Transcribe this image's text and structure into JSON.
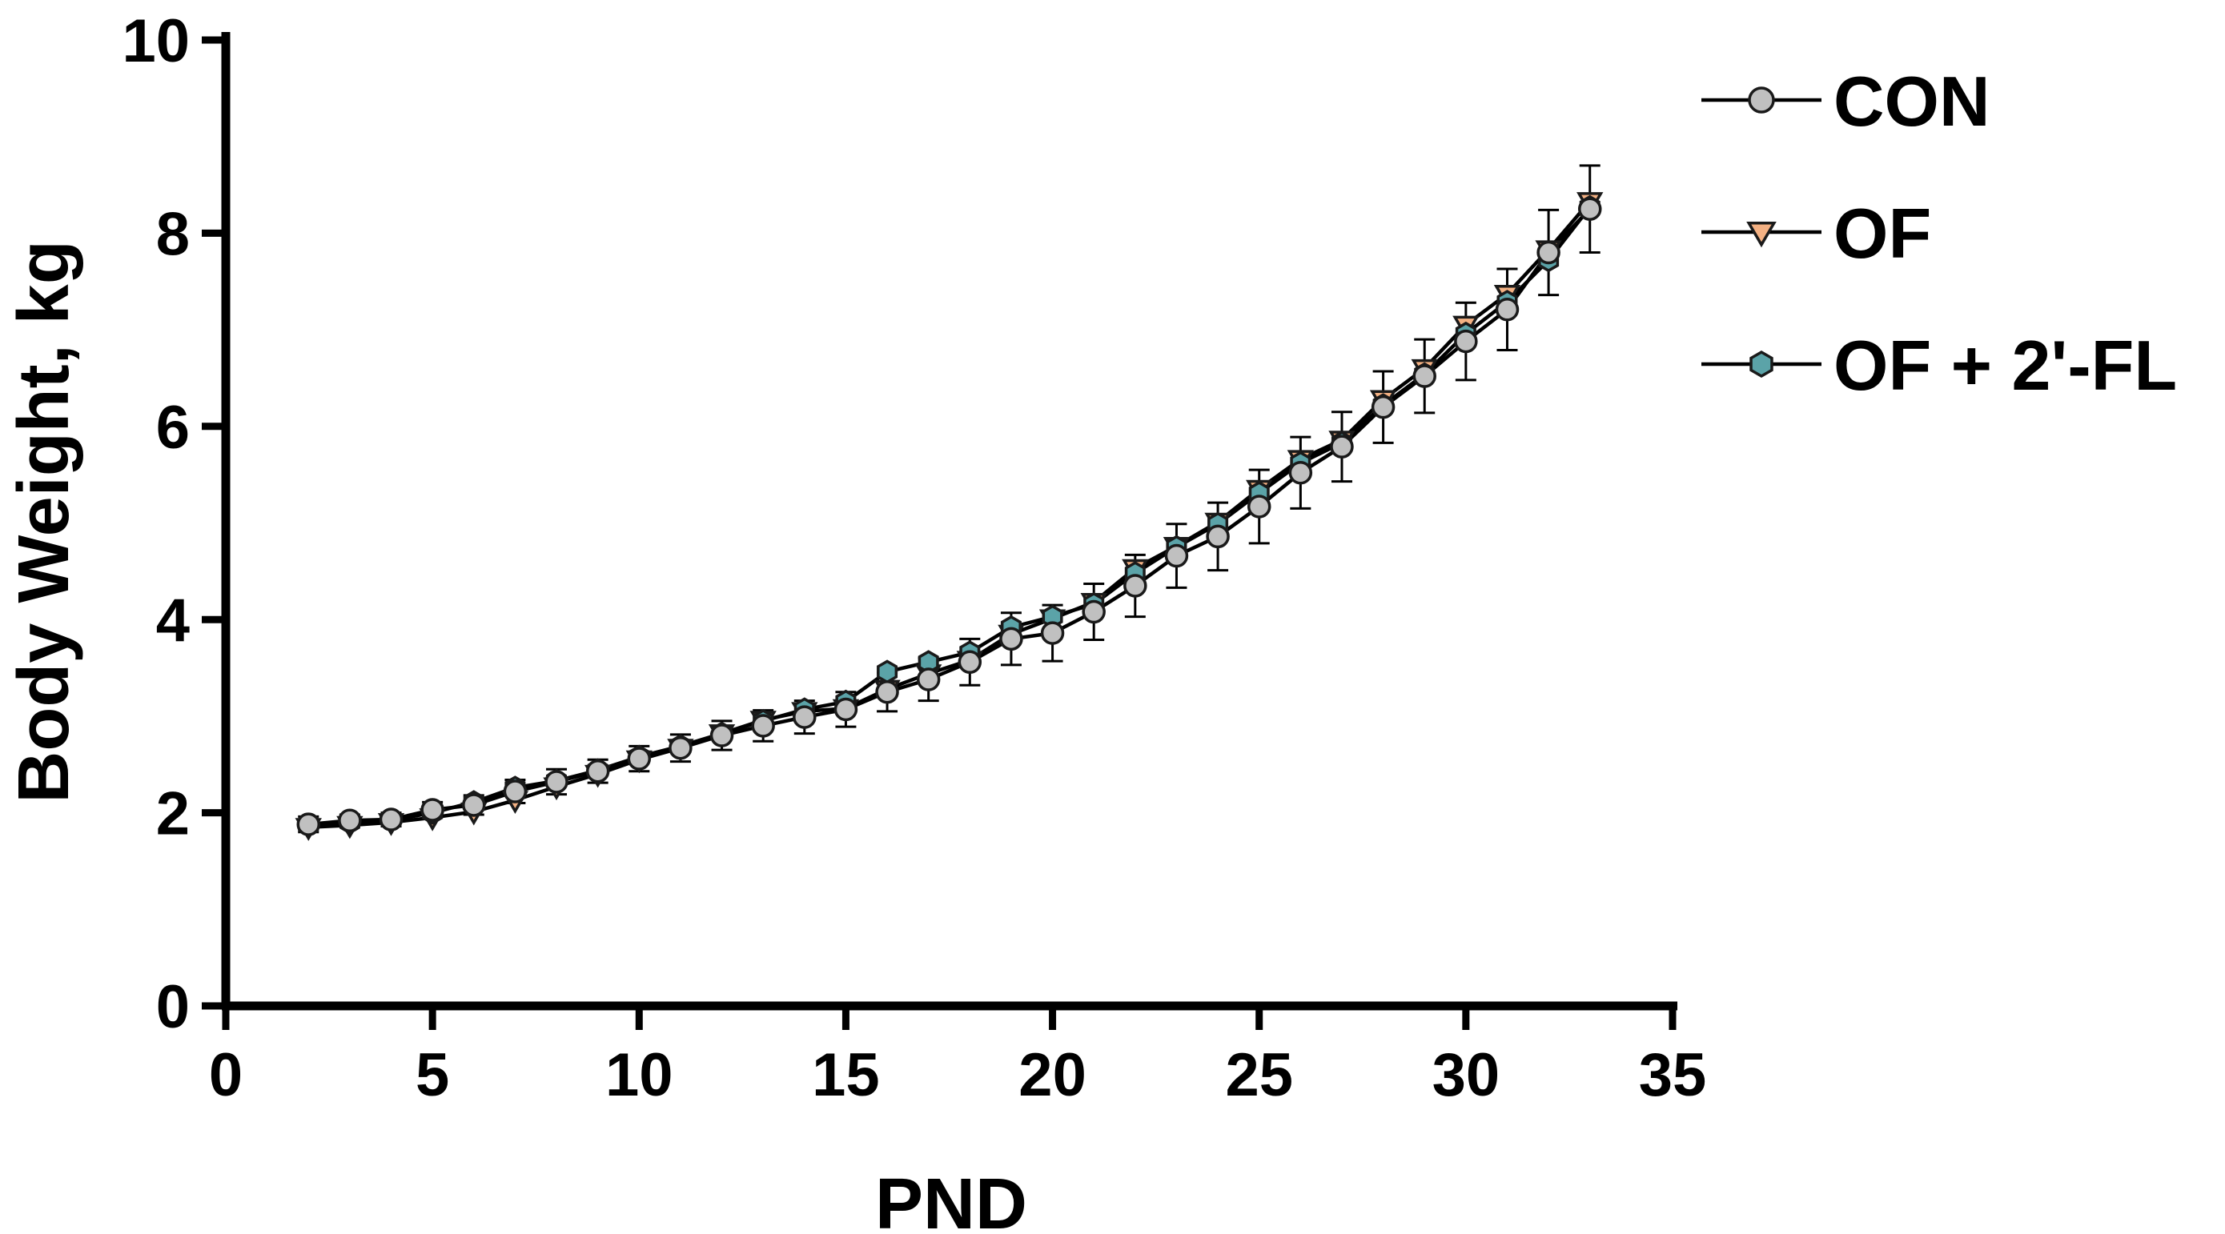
{
  "chart_data": {
    "type": "line",
    "title": "",
    "xlabel": "PND",
    "ylabel": "Body  Weight, kg",
    "xlim": [
      0,
      35
    ],
    "ylim": [
      0,
      10
    ],
    "x_ticks": [
      0,
      5,
      10,
      15,
      20,
      25,
      30,
      35
    ],
    "y_ticks": [
      0,
      2,
      4,
      6,
      8,
      10
    ],
    "grid": false,
    "legend_position": "top-right",
    "x": [
      2,
      3,
      4,
      5,
      6,
      7,
      8,
      9,
      10,
      11,
      12,
      13,
      14,
      15,
      16,
      17,
      18,
      19,
      20,
      21,
      22,
      23,
      24,
      25,
      26,
      27,
      28,
      29,
      30,
      31,
      32,
      33
    ],
    "series": [
      {
        "name": "CON",
        "marker": "circle",
        "color": "#c0c0c0",
        "values": [
          1.88,
          1.92,
          1.93,
          2.03,
          2.08,
          2.22,
          2.32,
          2.43,
          2.56,
          2.67,
          2.8,
          2.9,
          2.99,
          3.07,
          3.25,
          3.38,
          3.56,
          3.8,
          3.86,
          4.08,
          4.35,
          4.66,
          4.86,
          5.17,
          5.52,
          5.79,
          6.2,
          6.52,
          6.88,
          7.21,
          7.8,
          8.25
        ],
        "errors": [
          0.08,
          0.06,
          0.07,
          0.08,
          0.1,
          0.12,
          0.13,
          0.12,
          0.13,
          0.14,
          0.15,
          0.16,
          0.17,
          0.18,
          0.2,
          0.22,
          0.24,
          0.27,
          0.29,
          0.29,
          0.32,
          0.33,
          0.35,
          0.38,
          0.37,
          0.36,
          0.37,
          0.38,
          0.4,
          0.42,
          0.44,
          0.45
        ]
      },
      {
        "name": "OF",
        "marker": "triangle-down",
        "color": "#f4b183",
        "values": [
          1.85,
          1.87,
          1.9,
          1.95,
          2.01,
          2.13,
          2.27,
          2.4,
          2.55,
          2.67,
          2.82,
          2.96,
          3.05,
          3.08,
          3.28,
          3.44,
          3.58,
          3.85,
          4.01,
          4.18,
          4.53,
          4.76,
          5.01,
          5.35,
          5.66,
          5.86,
          6.28,
          6.6,
          7.05,
          7.37,
          7.83,
          8.33
        ]
      },
      {
        "name": "OF + 2'-FL",
        "marker": "hexagon",
        "color": "#5ba3a8",
        "values": [
          1.87,
          1.9,
          1.92,
          2.0,
          2.11,
          2.26,
          2.33,
          2.44,
          2.58,
          2.69,
          2.82,
          2.95,
          3.07,
          3.15,
          3.46,
          3.56,
          3.66,
          3.92,
          4.03,
          4.16,
          4.48,
          4.75,
          4.99,
          5.31,
          5.62,
          5.83,
          6.22,
          6.54,
          6.96,
          7.29,
          7.72,
          8.27
        ]
      }
    ]
  }
}
